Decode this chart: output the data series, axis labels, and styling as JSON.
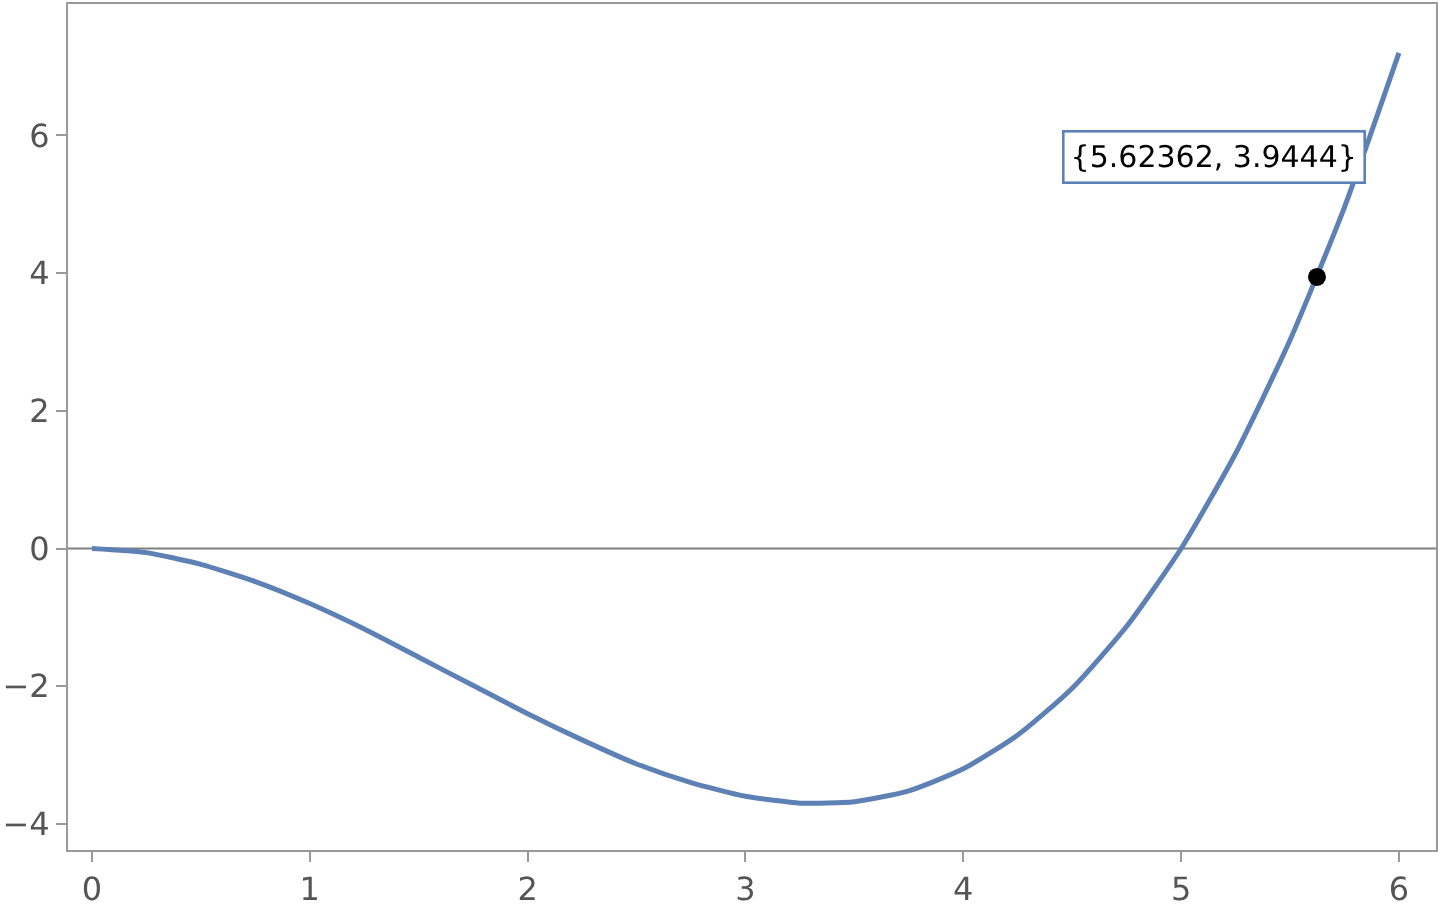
{
  "chart_data": {
    "type": "line",
    "xlim": [
      -0.11,
      6.17
    ],
    "ylim": [
      -4.38,
      7.91
    ],
    "xticks": [
      0,
      1,
      2,
      3,
      4,
      5,
      6
    ],
    "yticks": [
      -4,
      -2,
      0,
      2,
      4,
      6
    ],
    "grid": false,
    "marker": "none",
    "line_style": "solid",
    "series": [
      {
        "color": "#5e81b5",
        "x": [
          0,
          0.25,
          0.5,
          0.75,
          1,
          1.25,
          1.5,
          1.75,
          2,
          2.25,
          2.5,
          2.75,
          3,
          3.25,
          3.33,
          3.5,
          3.75,
          4,
          4.25,
          4.5,
          4.75,
          5,
          5.25,
          5.5,
          5.75,
          6
        ],
        "values": [
          0,
          -0.06,
          -0.23,
          -0.48,
          -0.8,
          -1.17,
          -1.58,
          -1.99,
          -2.4,
          -2.78,
          -3.13,
          -3.4,
          -3.6,
          -3.7,
          -3.7,
          -3.68,
          -3.52,
          -3.2,
          -2.71,
          -2.03,
          -1.13,
          0,
          1.38,
          3.03,
          4.96,
          7.2
        ]
      },
      {
        "type": "scatter",
        "color": "#000000",
        "marker": "circle",
        "x": [
          5.62362
        ],
        "values": [
          3.9444
        ]
      }
    ],
    "ref_lines": [
      {
        "axis": "y",
        "value": 0,
        "color": "#808080"
      }
    ],
    "annotations": [
      "{5.62362, 3.9444}"
    ]
  }
}
